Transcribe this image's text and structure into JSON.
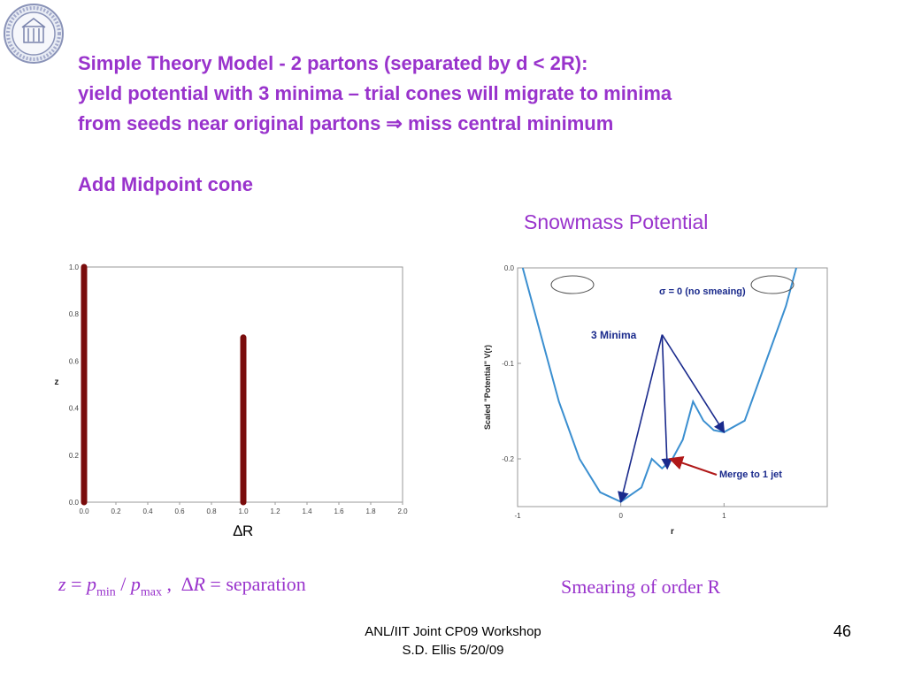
{
  "slide": {
    "headline": [
      "Simple Theory Model - 2 partons (separated by d < 2R):",
      "yield potential with 3 minima – trial cones will migrate to minima",
      "from seeds near original partons ⇒ miss central minimum",
      "Add Midpoint cone"
    ],
    "right_title": "Snowmass Potential",
    "caption_left": {
      "z": "z",
      "equals": " = ",
      "p": "p",
      "min": "min",
      "max": "max",
      "comma": " ,",
      "deltaR": "∆R",
      "separation": " = separation"
    },
    "caption_right": "Smearing of order R",
    "footer": [
      "ANL/IIT Joint CP09 Workshop",
      "S.D. Ellis 5/20/09"
    ],
    "slide_number": "46",
    "logo": "university-seal"
  },
  "chart_data": [
    {
      "type": "bar",
      "x": [
        0.0,
        1.0
      ],
      "values": [
        1.0,
        0.7
      ],
      "xlabel": "∆R",
      "ylabel": "z",
      "xlim": [
        0.0,
        2.0
      ],
      "ylim": [
        0.0,
        1.0
      ],
      "xticks": [
        "0.0",
        "0.2",
        "0.4",
        "0.6",
        "0.8",
        "1.0",
        "1.2",
        "1.4",
        "1.6",
        "1.8",
        "2.0"
      ],
      "yticks": [
        "0.0",
        "0.2",
        "0.4",
        "0.6",
        "0.8",
        "1.0"
      ],
      "bar_color": "#7a0c0c",
      "grid": false
    },
    {
      "type": "line",
      "xlabel": "r",
      "ylabel": "Scaled \"Potential\" V(r)",
      "xlim": [
        -1,
        2
      ],
      "ylim": [
        -0.25,
        0.0
      ],
      "xticks": [
        "-1",
        "0",
        "1"
      ],
      "yticks": [
        "0.0",
        "-0.1",
        "-0.2"
      ],
      "line_color": "#3b8fd0",
      "series": [
        {
          "x": [
            -0.95,
            -0.8,
            -0.6,
            -0.4,
            -0.2,
            0.0,
            0.2,
            0.3,
            0.4,
            0.5,
            0.6,
            0.7,
            0.8,
            0.9,
            1.0,
            1.2,
            1.4,
            1.6,
            1.7
          ],
          "y": [
            0.0,
            -0.06,
            -0.14,
            -0.2,
            -0.235,
            -0.245,
            -0.23,
            -0.2,
            -0.21,
            -0.2,
            -0.18,
            -0.14,
            -0.16,
            -0.17,
            -0.172,
            -0.16,
            -0.1,
            -0.04,
            0.0
          ]
        }
      ],
      "annotations": {
        "sigma_note": "σ = 0 (no smeaing)",
        "three_minima": "3 Minima",
        "merge_note": "Merge to 1 jet"
      },
      "minima_x": [
        0.0,
        0.45,
        1.0
      ],
      "minima_y": [
        -0.245,
        -0.21,
        -0.172
      ],
      "three_minima_arrow_origin": [
        0.4,
        -0.07
      ],
      "merge_arrow_target": [
        0.48,
        -0.2
      ],
      "arrow_color": "#1a2a8c",
      "merge_arrow_color": "#b01818"
    }
  ]
}
